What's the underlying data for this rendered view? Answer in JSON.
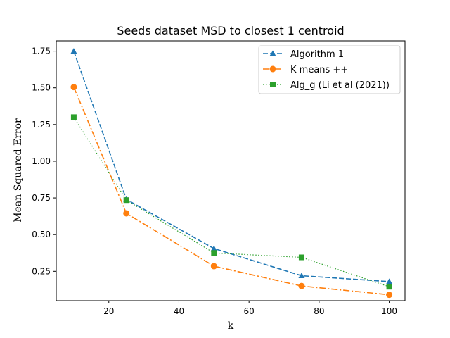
{
  "chart_data": {
    "type": "line",
    "title": "Seeds dataset MSD to closest 1 centroid",
    "xlabel": "k",
    "ylabel": "Mean Squared Error",
    "xlim": [
      5,
      104.5
    ],
    "ylim": [
      0.05,
      1.82
    ],
    "xticks": [
      20,
      40,
      60,
      80,
      100
    ],
    "yticks": [
      0.25,
      0.5,
      0.75,
      1.0,
      1.25,
      1.5,
      1.75
    ],
    "ytick_labels": [
      "0.25",
      "0.50",
      "0.75",
      "1.00",
      "1.25",
      "1.50",
      "1.75"
    ],
    "legend_position": "top-right",
    "x": [
      10,
      25,
      50,
      75,
      100
    ],
    "series": [
      {
        "name": "Algorithm 1",
        "values": [
          1.75,
          0.74,
          0.405,
          0.22,
          0.18
        ],
        "color": "#1f77b4",
        "linestyle": "dashed",
        "marker": "triangle"
      },
      {
        "name": "K means ++",
        "values": [
          1.505,
          0.645,
          0.285,
          0.15,
          0.09
        ],
        "color": "#ff7f0e",
        "linestyle": "dashdot",
        "marker": "circle"
      },
      {
        "name": "Alg_g (Li et al (2021))",
        "values": [
          1.3,
          0.735,
          0.375,
          0.345,
          0.145
        ],
        "color": "#2ca02c",
        "linestyle": "dotted",
        "marker": "square"
      }
    ]
  }
}
